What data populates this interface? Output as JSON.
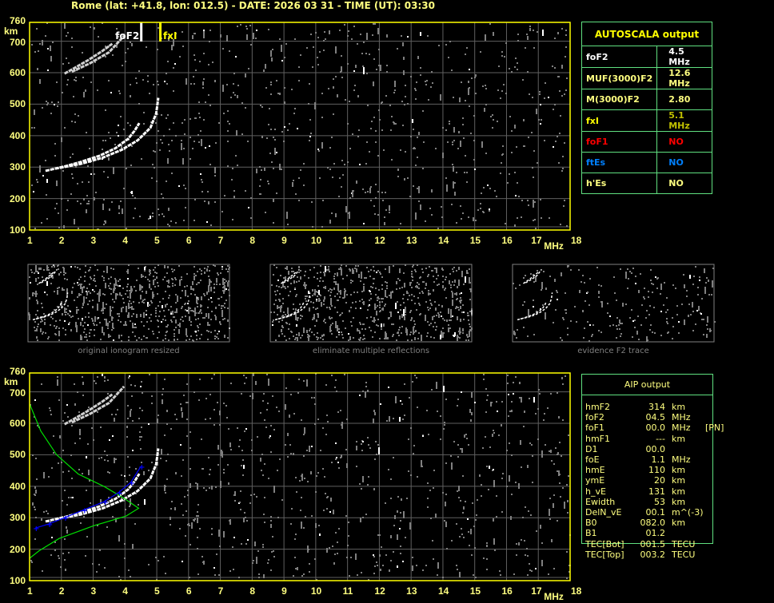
{
  "header": {
    "title": "Rome (lat: +41.8, lon: 012.5) - DATE: 2026 03 31 - TIME (UT): 03:30"
  },
  "colors": {
    "frame": "#ffff00",
    "grid": "#606060",
    "trace": "#ffffff",
    "noise": "#808080",
    "profile": "#00e000",
    "fit": "#0000ff",
    "table_border": "#60e080"
  },
  "chart_data": [
    {
      "type": "scatter",
      "name": "ionogram-autoscala",
      "x_ticks": [
        "1",
        "2",
        "3",
        "4",
        "5",
        "6",
        "7",
        "8",
        "9",
        "10",
        "11",
        "12",
        "13",
        "14",
        "15",
        "16",
        "17",
        "18"
      ],
      "x_unit": "MHz",
      "y_unit": "km",
      "y_ticks": [
        "760",
        "700",
        "600",
        "500",
        "400",
        "300",
        "200",
        "100"
      ],
      "xlim": [
        1,
        18
      ],
      "ylim": [
        100,
        760
      ],
      "grid": true,
      "markers": [
        {
          "label": "foF2",
          "freq": 4.5,
          "color": "#ffffff"
        },
        {
          "label": "fxI",
          "freq": 5.1,
          "color": "#ffff00"
        }
      ],
      "traces": [
        {
          "kind": "o-mode",
          "points": [
            [
              1.5,
              288
            ],
            [
              2.1,
              302
            ],
            [
              2.6,
              316
            ],
            [
              3.2,
              336
            ],
            [
              3.7,
              360
            ],
            [
              4.1,
              390
            ],
            [
              4.3,
              415
            ],
            [
              4.45,
              440
            ]
          ]
        },
        {
          "kind": "x-mode",
          "points": [
            [
              1.8,
              295
            ],
            [
              2.6,
              310
            ],
            [
              3.3,
              330
            ],
            [
              3.9,
              355
            ],
            [
              4.4,
              385
            ],
            [
              4.8,
              425
            ],
            [
              4.98,
              470
            ],
            [
              5.05,
              520
            ]
          ]
        },
        {
          "kind": "second-hop",
          "points": [
            [
              2.1,
              597
            ],
            [
              2.5,
              620
            ],
            [
              2.86,
              641
            ],
            [
              3.3,
              670
            ],
            [
              3.6,
              692
            ]
          ]
        },
        {
          "kind": "second-hop",
          "points": [
            [
              2.33,
              603
            ],
            [
              2.9,
              630
            ],
            [
              3.5,
              665
            ],
            [
              3.97,
              717
            ]
          ]
        }
      ]
    },
    {
      "type": "line",
      "name": "ionogram-aip",
      "x_ticks": [
        "1",
        "2",
        "3",
        "4",
        "5",
        "6",
        "7",
        "8",
        "9",
        "10",
        "11",
        "12",
        "13",
        "14",
        "15",
        "16",
        "17",
        "18"
      ],
      "x_unit": "MHz",
      "y_unit": "km",
      "y_ticks": [
        "760",
        "700",
        "600",
        "500",
        "400",
        "300",
        "200",
        "100"
      ],
      "xlim": [
        1,
        18
      ],
      "ylim": [
        100,
        760
      ],
      "grid": true,
      "profile": [
        [
          1.0,
          662
        ],
        [
          1.35,
          576
        ],
        [
          1.85,
          500
        ],
        [
          2.53,
          439
        ],
        [
          3.35,
          399
        ],
        [
          4.0,
          360
        ],
        [
          4.43,
          330
        ],
        [
          4.03,
          305
        ],
        [
          3.03,
          275
        ],
        [
          1.93,
          234
        ],
        [
          1.3,
          195
        ],
        [
          1.0,
          171
        ]
      ],
      "fit": [
        [
          1.18,
          267
        ],
        [
          1.6,
          280
        ],
        [
          2.1,
          300
        ],
        [
          2.7,
          325
        ],
        [
          3.35,
          351
        ],
        [
          3.8,
          380
        ],
        [
          4.18,
          412
        ],
        [
          4.5,
          463
        ]
      ]
    }
  ],
  "thumbnails": [
    {
      "caption": "original ionogram resized",
      "noise": "high"
    },
    {
      "caption": "eliminate multiple reflections",
      "noise": "high"
    },
    {
      "caption": "evidence F2 trace",
      "noise": "low"
    }
  ],
  "autoscala": {
    "title": "AUTOSCALA output",
    "rows": [
      {
        "label": "foF2",
        "value": "4.5 MHz",
        "label_color": "#ffffff",
        "value_color": "#ffffff"
      },
      {
        "label": "MUF(3000)F2",
        "value": "12.6 MHz",
        "label_color": "#ffff80",
        "value_color": "#ffff80"
      },
      {
        "label": "M(3000)F2",
        "value": "2.80",
        "label_color": "#ffff80",
        "value_color": "#ffff80"
      },
      {
        "label": "fxI",
        "value": "5.1 MHz",
        "label_color": "#ffff00",
        "value_color": "#c0c000"
      },
      {
        "label": "foF1",
        "value": "NO",
        "label_color": "#ff0000",
        "value_color": "#ff0000"
      },
      {
        "label": "ftEs",
        "value": "NO",
        "label_color": "#0080ff",
        "value_color": "#0080ff"
      },
      {
        "label": "h'Es",
        "value": "NO",
        "label_color": "#ffff80",
        "value_color": "#ffff80"
      }
    ]
  },
  "aip": {
    "title": "AIP output",
    "rows": [
      {
        "name": "hmF2",
        "value": "314",
        "unit": "km",
        "extra": ""
      },
      {
        "name": "foF2",
        "value": "04.5",
        "unit": "MHz",
        "extra": ""
      },
      {
        "name": "foF1",
        "value": "00.0",
        "unit": "MHz",
        "extra": "[PN]"
      },
      {
        "name": "hmF1",
        "value": "---",
        "unit": "km",
        "extra": ""
      },
      {
        "name": "D1",
        "value": "00.0",
        "unit": "",
        "extra": ""
      },
      {
        "name": "foE",
        "value": "1.1",
        "unit": "MHz",
        "extra": ""
      },
      {
        "name": "hmE",
        "value": "110",
        "unit": "km",
        "extra": ""
      },
      {
        "name": "ymE",
        "value": "20",
        "unit": "km",
        "extra": ""
      },
      {
        "name": "h_vE",
        "value": "131",
        "unit": "km",
        "extra": ""
      },
      {
        "name": "Ewidth",
        "value": "53",
        "unit": "km",
        "extra": ""
      },
      {
        "name": "DelN_vE",
        "value": "00.1",
        "unit": "m^(-3)",
        "extra": ""
      },
      {
        "name": "B0",
        "value": "082.0",
        "unit": "km",
        "extra": ""
      },
      {
        "name": "B1",
        "value": "01.2",
        "unit": "",
        "extra": ""
      },
      {
        "name": "TEC[Bot]",
        "value": "001.5",
        "unit": "TECU",
        "extra": ""
      },
      {
        "name": "TEC[Top]",
        "value": "003.2",
        "unit": "TECU",
        "extra": ""
      }
    ]
  }
}
